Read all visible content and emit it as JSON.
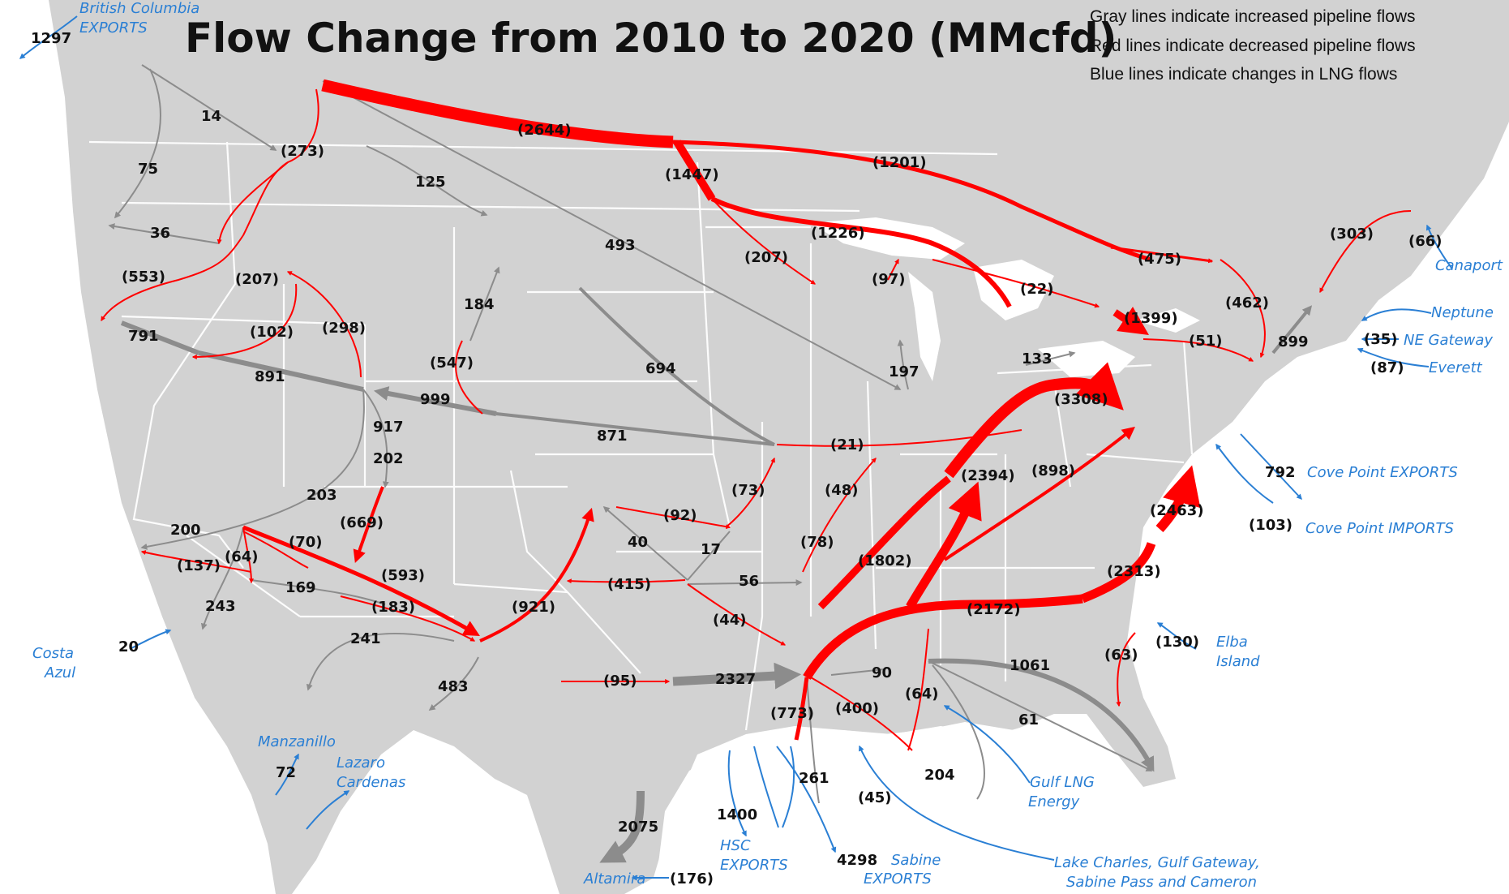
{
  "title": "Flow Change from 2010 to 2020 (MMcfd)",
  "legend": {
    "gray": "Gray lines indicate increased pipeline flows",
    "red": "Red lines indicate decreased pipeline flows",
    "blue": "Blue lines indicate changes in LNG flows",
    "colors": {
      "increase": "#8c8c8c",
      "decrease": "#ff0000",
      "lng": "#2a7fd4"
    }
  },
  "labels": {
    "v14": "14",
    "v75": "75",
    "v36": "36",
    "v125": "125",
    "v493": "493",
    "v184": "184",
    "v694": "694",
    "v791": "791",
    "v891": "891",
    "v999": "999",
    "v871": "871",
    "v917": "917",
    "v202": "202",
    "v203": "203",
    "v200": "200",
    "v169": "169",
    "v243": "243",
    "v241": "241",
    "v483": "483",
    "v40": "40",
    "v17": "17",
    "v56": "56",
    "v197": "197",
    "v133": "133",
    "v899": "899",
    "v2327": "2327",
    "v90": "90",
    "v1061": "1061",
    "v61": "61",
    "v204": "204",
    "v261": "261",
    "v2075": "2075",
    "v1297": "1297",
    "v792": "792",
    "v20": "20",
    "v72": "72",
    "v1400": "1400",
    "v4298": "4298",
    "r2644": "(2644)",
    "r1201": "(1201)",
    "r1447": "(1447)",
    "r1226": "(1226)",
    "r207a": "(207)",
    "r97": "(97)",
    "r22": "(22)",
    "r475": "(475)",
    "r1399": "(1399)",
    "r51": "(51)",
    "r462": "(462)",
    "r303": "(303)",
    "r66": "(66)",
    "r273": "(273)",
    "r553": "(553)",
    "r207b": "(207)",
    "r102": "(102)",
    "r298": "(298)",
    "r547": "(547)",
    "r21": "(21)",
    "r3308": "(3308)",
    "r2394": "(2394)",
    "r898": "(898)",
    "r2463": "(2463)",
    "r2313": "(2313)",
    "r2172": "(2172)",
    "r1802": "(1802)",
    "r48": "(48)",
    "r78": "(78)",
    "r92": "(92)",
    "r73": "(73)",
    "r415": "(415)",
    "r44": "(44)",
    "r921": "(921)",
    "r669": "(669)",
    "r593": "(593)",
    "r70": "(70)",
    "r64a": "(64)",
    "r137": "(137)",
    "r183": "(183)",
    "r95": "(95)",
    "r773": "(773)",
    "r400": "(400)",
    "r64b": "(64)",
    "r63": "(63)",
    "r130": "(130)",
    "r45": "(45)",
    "r35": "(35)",
    "r87": "(87)",
    "r103": "(103)",
    "r176": "(176)"
  },
  "places": {
    "bc_1": "British Columbia",
    "bc_2": "EXPORTS",
    "canaport": "Canaport",
    "neptune": "Neptune",
    "ne_gateway": "NE Gateway",
    "everett": "Everett",
    "cove_exports": "Cove Point  EXPORTS",
    "cove_imports": "Cove Point  IMPORTS",
    "elba_1": "Elba",
    "elba_2": "Island",
    "gulf_1": "Gulf LNG",
    "gulf_2": "Energy",
    "lake_1": "Lake Charles, Gulf Gateway,",
    "lake_2": "Sabine Pass and Cameron",
    "sabine_1": "Sabine",
    "sabine_2": "EXPORTS",
    "hsc_1": "HSC",
    "hsc_2": "EXPORTS",
    "altamira": "Altamira",
    "costa_1": "Costa",
    "costa_2": "Azul",
    "manzanillo": "Manzanillo",
    "lazaro_1": "Lazaro",
    "lazaro_2": "Cardenas"
  }
}
